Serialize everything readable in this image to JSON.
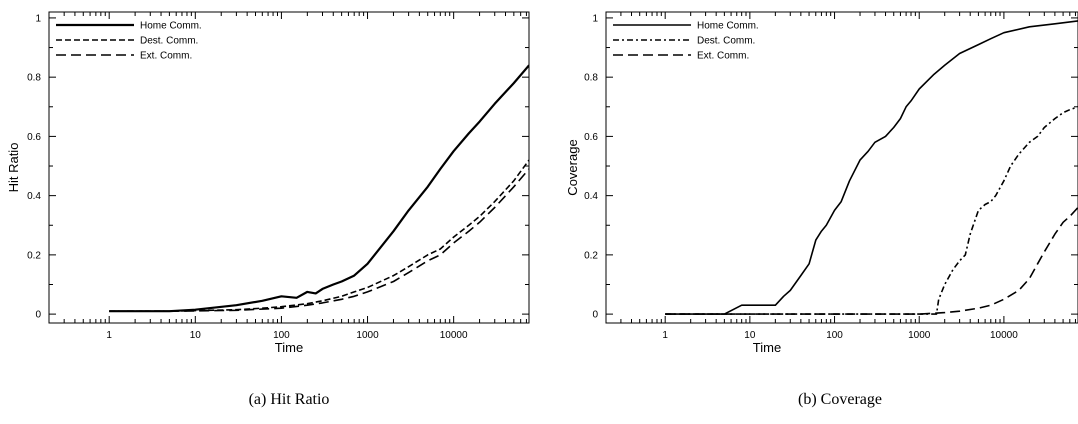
{
  "chart_data": [
    {
      "type": "line",
      "caption": "(a) Hit Ratio",
      "xlabel": "Time",
      "ylabel": "Hit Ratio",
      "xscale": "log",
      "xlim": [
        0.2,
        75000
      ],
      "ylim": [
        -0.03,
        1.02
      ],
      "xticks": [
        "1",
        "10",
        "100",
        "1000",
        "10000"
      ],
      "yticks": [
        "0",
        "0.2",
        "0.4",
        "0.6",
        "0.8",
        "1"
      ],
      "legend_position": "top-left",
      "series": [
        {
          "name": "Home Comm.",
          "dash": "solid",
          "width": 2.2,
          "x": [
            1,
            5,
            10,
            30,
            60,
            100,
            150,
            200,
            250,
            300,
            400,
            500,
            700,
            1000,
            2000,
            3000,
            5000,
            7000,
            10000,
            15000,
            20000,
            30000,
            50000,
            75000
          ],
          "y": [
            0.01,
            0.01,
            0.015,
            0.03,
            0.045,
            0.06,
            0.055,
            0.075,
            0.07,
            0.085,
            0.1,
            0.11,
            0.13,
            0.17,
            0.28,
            0.35,
            0.43,
            0.49,
            0.55,
            0.61,
            0.65,
            0.71,
            0.78,
            0.84
          ]
        },
        {
          "name": "Dest. Comm.",
          "dash": "6,3",
          "width": 1.6,
          "x": [
            1,
            5,
            10,
            30,
            60,
            100,
            200,
            300,
            500,
            700,
            1000,
            2000,
            3000,
            5000,
            7000,
            10000,
            15000,
            20000,
            30000,
            50000,
            75000
          ],
          "y": [
            0.01,
            0.01,
            0.012,
            0.015,
            0.02,
            0.025,
            0.035,
            0.045,
            0.06,
            0.075,
            0.09,
            0.13,
            0.16,
            0.2,
            0.22,
            0.26,
            0.3,
            0.33,
            0.38,
            0.45,
            0.52
          ]
        },
        {
          "name": "Ext. Comm.",
          "dash": "10,5",
          "width": 1.6,
          "x": [
            1,
            5,
            10,
            30,
            60,
            100,
            200,
            300,
            500,
            700,
            1000,
            2000,
            3000,
            5000,
            7000,
            10000,
            15000,
            20000,
            30000,
            50000,
            75000
          ],
          "y": [
            0.01,
            0.01,
            0.011,
            0.013,
            0.017,
            0.02,
            0.03,
            0.038,
            0.05,
            0.06,
            0.075,
            0.11,
            0.14,
            0.18,
            0.2,
            0.24,
            0.28,
            0.31,
            0.36,
            0.43,
            0.49
          ]
        }
      ]
    },
    {
      "type": "line",
      "caption": "(b) Coverage",
      "xlabel": "Time",
      "ylabel": "Coverage",
      "xscale": "log",
      "xlim": [
        0.2,
        75000
      ],
      "ylim": [
        -0.03,
        1.02
      ],
      "xticks": [
        "1",
        "10",
        "100",
        "1000",
        "10000"
      ],
      "yticks": [
        "0",
        "0.2",
        "0.4",
        "0.6",
        "0.8",
        "1"
      ],
      "legend_position": "top-left",
      "series": [
        {
          "name": "Home Comm.",
          "dash": "solid",
          "width": 1.6,
          "x": [
            1,
            5,
            8,
            10,
            20,
            25,
            30,
            40,
            50,
            60,
            70,
            80,
            100,
            120,
            150,
            200,
            250,
            300,
            400,
            500,
            600,
            700,
            800,
            1000,
            1500,
            2000,
            3000,
            5000,
            7000,
            10000,
            20000,
            40000,
            75000
          ],
          "y": [
            0,
            0,
            0.03,
            0.03,
            0.03,
            0.06,
            0.08,
            0.13,
            0.17,
            0.25,
            0.28,
            0.3,
            0.35,
            0.38,
            0.45,
            0.52,
            0.55,
            0.58,
            0.6,
            0.63,
            0.66,
            0.7,
            0.72,
            0.76,
            0.81,
            0.84,
            0.88,
            0.91,
            0.93,
            0.95,
            0.97,
            0.98,
            0.99
          ]
        },
        {
          "name": "Dest. Comm.",
          "dash": "6,3,2,3",
          "width": 1.6,
          "x": [
            1,
            1000,
            1600,
            1700,
            2000,
            2500,
            3000,
            3500,
            4000,
            5000,
            6000,
            7000,
            8000,
            10000,
            12000,
            15000,
            20000,
            25000,
            30000,
            40000,
            50000,
            60000,
            75000
          ],
          "y": [
            0,
            0,
            0,
            0.05,
            0.1,
            0.15,
            0.18,
            0.2,
            0.27,
            0.35,
            0.37,
            0.38,
            0.4,
            0.45,
            0.5,
            0.54,
            0.58,
            0.6,
            0.63,
            0.66,
            0.68,
            0.69,
            0.7
          ]
        },
        {
          "name": "Ext. Comm.",
          "dash": "10,5",
          "width": 1.6,
          "x": [
            1,
            1000,
            2000,
            3000,
            5000,
            7000,
            10000,
            15000,
            20000,
            25000,
            30000,
            40000,
            50000,
            60000,
            75000
          ],
          "y": [
            0,
            0,
            0.005,
            0.01,
            0.02,
            0.03,
            0.05,
            0.08,
            0.12,
            0.17,
            0.21,
            0.27,
            0.31,
            0.33,
            0.36
          ]
        }
      ]
    }
  ]
}
